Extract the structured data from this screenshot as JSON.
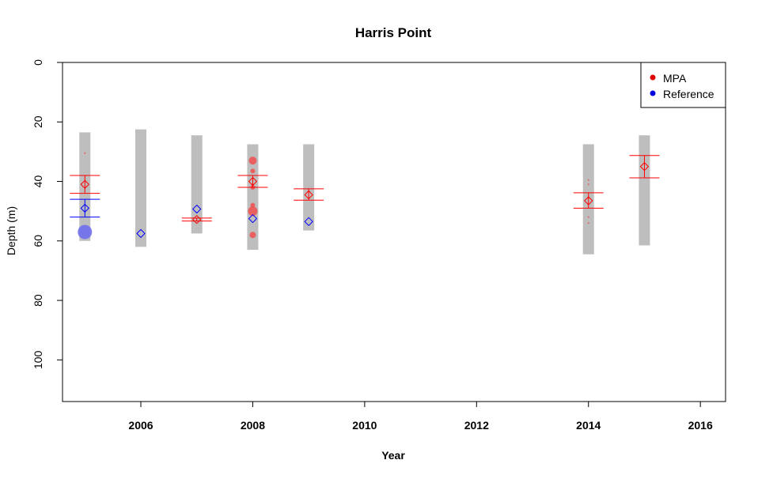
{
  "chart_data": {
    "type": "scatter",
    "title": "Harris Point",
    "xlabel": "Year",
    "ylabel": "Depth (m)",
    "xlim": [
      2004.6,
      2016.45
    ],
    "ylim": [
      0,
      114
    ],
    "y_reversed": true,
    "x_ticks": [
      2006,
      2008,
      2010,
      2012,
      2014,
      2016
    ],
    "y_ticks": [
      0,
      20,
      40,
      60,
      80,
      100
    ],
    "legend": {
      "position": "top-right",
      "entries": [
        {
          "name": "MPA",
          "color": "#e00000"
        },
        {
          "name": "Reference",
          "color": "#0000e0"
        }
      ]
    },
    "colors": {
      "range_bar": "#bebebe",
      "mpa": "#ff0000",
      "mpa_point": "#f05050",
      "reference": "#0000ff",
      "reference_point": "#6a6af0"
    },
    "depth_ranges": [
      {
        "year": 2005,
        "min": 23.5,
        "max": 60
      },
      {
        "year": 2006,
        "min": 22.5,
        "max": 62
      },
      {
        "year": 2007,
        "min": 24.5,
        "max": 57.5
      },
      {
        "year": 2008,
        "min": 27.5,
        "max": 63
      },
      {
        "year": 2009,
        "min": 27.5,
        "max": 56.5
      },
      {
        "year": 2014,
        "min": 27.5,
        "max": 64.5
      },
      {
        "year": 2015,
        "min": 24.5,
        "max": 61.5
      }
    ],
    "series": [
      {
        "name": "MPA",
        "summary": [
          {
            "year": 2005,
            "mean": 41,
            "lower": 38,
            "upper": 44
          },
          {
            "year": 2007,
            "mean": 52.8,
            "lower": 52.3,
            "upper": 53.3
          },
          {
            "year": 2008,
            "mean": 40,
            "lower": 38,
            "upper": 42
          },
          {
            "year": 2009,
            "mean": 44.5,
            "lower": 42.5,
            "upper": 46.3
          },
          {
            "year": 2014,
            "mean": 46.5,
            "lower": 43.8,
            "upper": 49
          },
          {
            "year": 2015,
            "mean": 35,
            "lower": 31.3,
            "upper": 38.8
          }
        ],
        "points": [
          {
            "year": 2005,
            "depth": 30.5,
            "size": 1
          },
          {
            "year": 2008,
            "depth": 33,
            "size": 5
          },
          {
            "year": 2008,
            "depth": 36.5,
            "size": 3
          },
          {
            "year": 2008,
            "depth": 42,
            "size": 3
          },
          {
            "year": 2008,
            "depth": 48,
            "size": 3
          },
          {
            "year": 2008,
            "depth": 50,
            "size": 6
          },
          {
            "year": 2008,
            "depth": 58,
            "size": 4
          },
          {
            "year": 2014,
            "depth": 39.5,
            "size": 1
          },
          {
            "year": 2014,
            "depth": 41,
            "size": 1
          },
          {
            "year": 2014,
            "depth": 52,
            "size": 1
          },
          {
            "year": 2014,
            "depth": 54,
            "size": 1
          }
        ]
      },
      {
        "name": "Reference",
        "summary": [
          {
            "year": 2005,
            "mean": 49,
            "lower": 46,
            "upper": 52
          },
          {
            "year": 2006,
            "mean": 57.5,
            "lower": 57.5,
            "upper": 57.5
          },
          {
            "year": 2007,
            "mean": 49.3,
            "lower": 49.3,
            "upper": 49.3
          },
          {
            "year": 2008,
            "mean": 52.5,
            "lower": 52.5,
            "upper": 52.5
          },
          {
            "year": 2009,
            "mean": 53.5,
            "lower": 53.5,
            "upper": 53.5
          }
        ],
        "points": [
          {
            "year": 2005,
            "depth": 57,
            "size": 9
          }
        ]
      }
    ]
  }
}
